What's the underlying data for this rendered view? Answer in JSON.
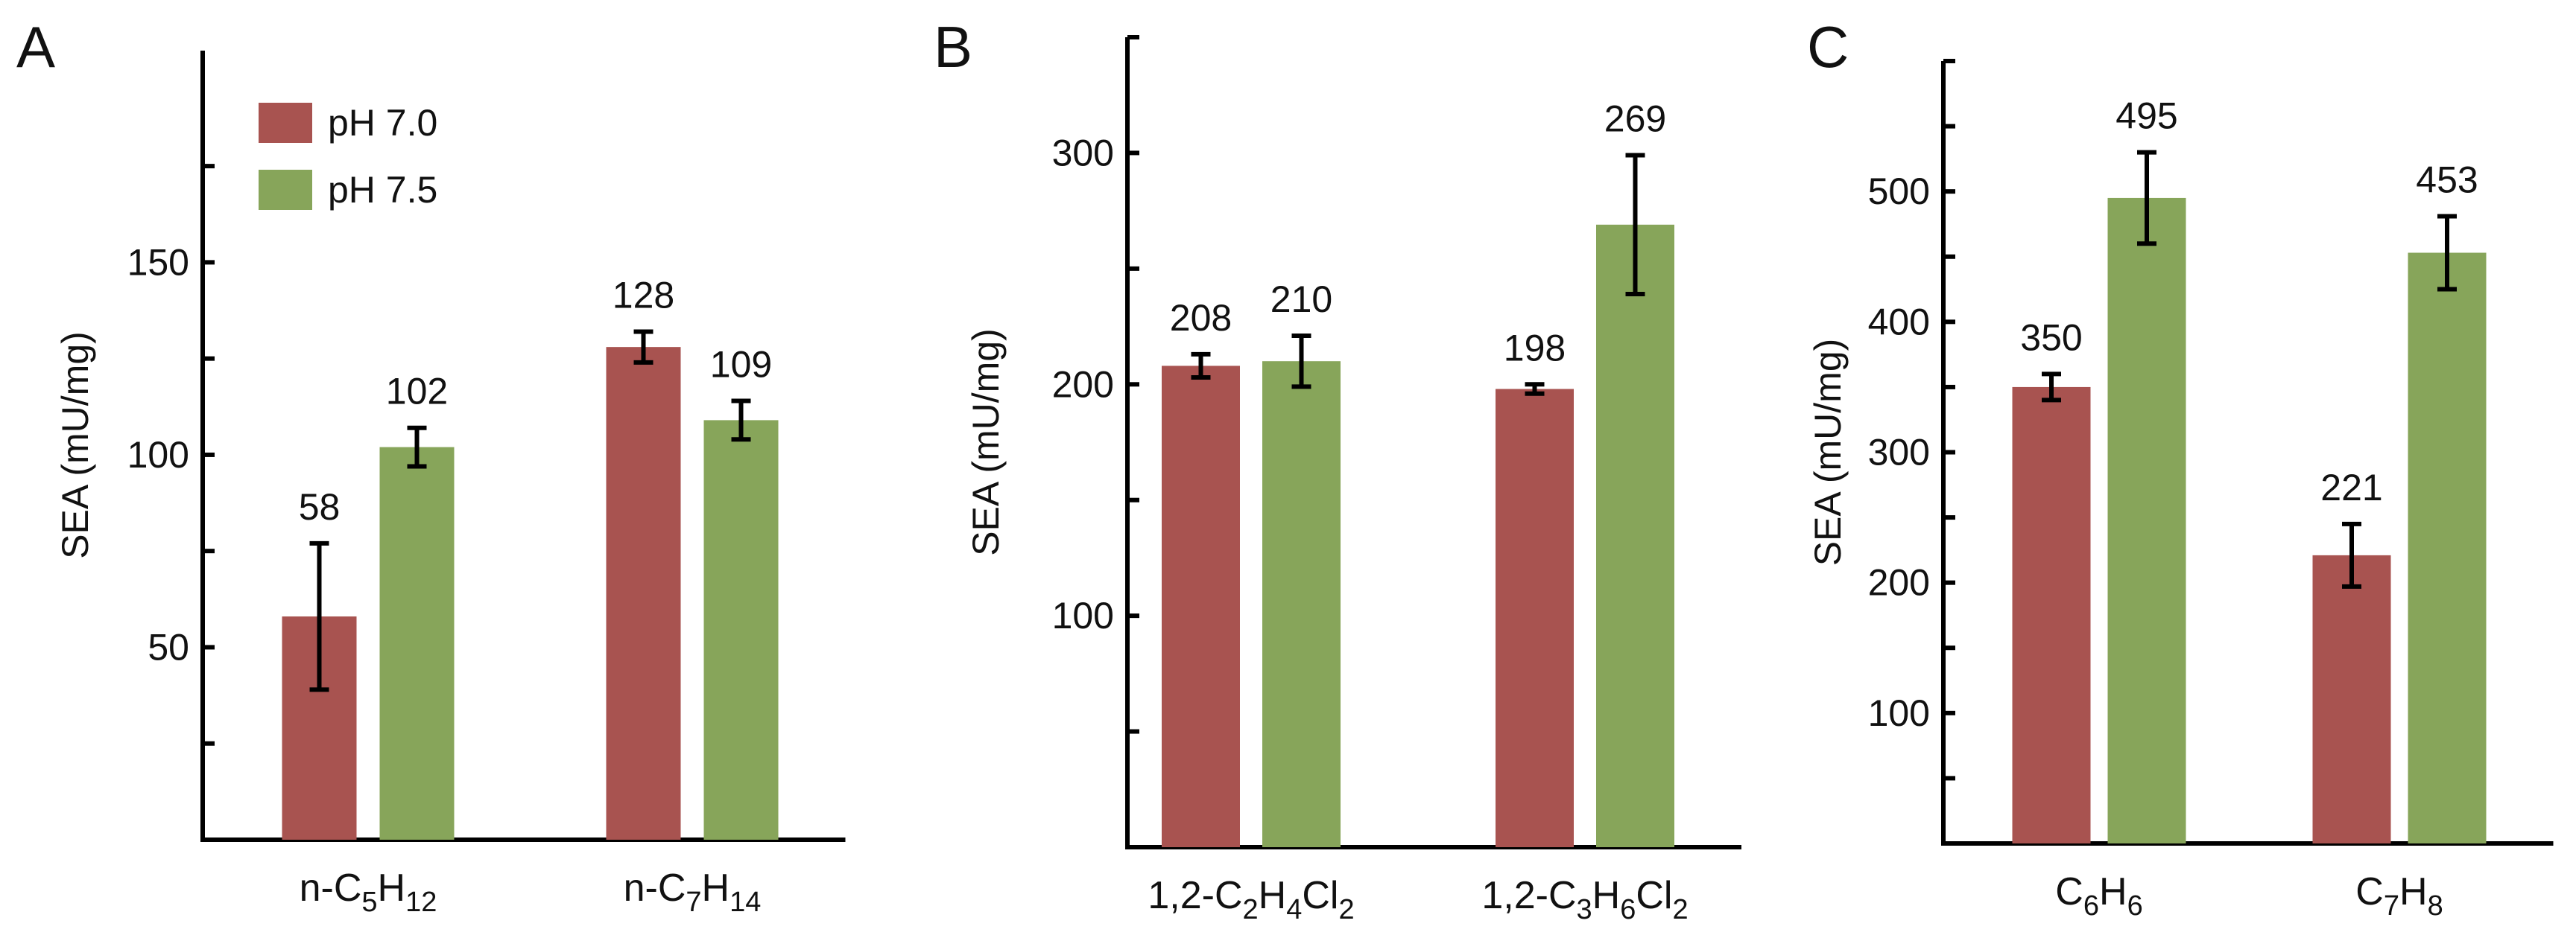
{
  "colors": {
    "ph70": "#a85350",
    "ph75": "#87a55a",
    "axis": "#000000"
  },
  "legend": {
    "items": [
      {
        "label": "pH 7.0",
        "color_key": "ph70"
      },
      {
        "label": "pH 7.5",
        "color_key": "ph75"
      }
    ],
    "placement": "top-left of panel A"
  },
  "chart_data": [
    {
      "panel": "A",
      "type": "bar",
      "ylabel": "SEA  (mU/mg)",
      "ylim": [
        0,
        205
      ],
      "yticks_labeled": [
        50,
        100,
        150
      ],
      "yticks_minor": [
        25,
        75,
        125,
        175
      ],
      "categories": [
        {
          "parts": [
            {
              "t": "n-C"
            },
            {
              "t": "5",
              "sub": true
            },
            {
              "t": "H"
            },
            {
              "t": "12",
              "sub": true
            }
          ]
        },
        {
          "parts": [
            {
              "t": "n-C"
            },
            {
              "t": "7",
              "sub": true
            },
            {
              "t": "H"
            },
            {
              "t": "14",
              "sub": true
            }
          ]
        }
      ],
      "series": [
        {
          "name": "pH 7.0",
          "values": [
            58,
            128
          ],
          "errors": [
            19,
            4
          ],
          "labels": [
            "58",
            "128"
          ]
        },
        {
          "name": "pH 7.5",
          "values": [
            102,
            109
          ],
          "errors": [
            5,
            5
          ],
          "labels": [
            "102",
            "109"
          ]
        }
      ]
    },
    {
      "panel": "B",
      "type": "bar",
      "ylabel": "SEA  (mU/mg)",
      "ylim": [
        0,
        350
      ],
      "yticks_labeled": [
        100,
        200,
        300
      ],
      "yticks_minor": [
        50,
        150,
        250,
        350
      ],
      "categories": [
        {
          "parts": [
            {
              "t": "1,2-C"
            },
            {
              "t": "2",
              "sub": true
            },
            {
              "t": "H"
            },
            {
              "t": "4",
              "sub": true
            },
            {
              "t": "Cl"
            },
            {
              "t": "2",
              "sub": true
            }
          ]
        },
        {
          "parts": [
            {
              "t": "1,2-C"
            },
            {
              "t": "3",
              "sub": true
            },
            {
              "t": "H"
            },
            {
              "t": "6",
              "sub": true
            },
            {
              "t": "Cl"
            },
            {
              "t": "2",
              "sub": true
            }
          ]
        }
      ],
      "series": [
        {
          "name": "pH 7.0",
          "values": [
            208,
            198
          ],
          "errors": [
            5,
            2
          ],
          "labels": [
            "208",
            "198"
          ]
        },
        {
          "name": "pH 7.5",
          "values": [
            210,
            269
          ],
          "errors": [
            11,
            30
          ],
          "labels": [
            "210",
            "269"
          ]
        }
      ]
    },
    {
      "panel": "C",
      "type": "bar",
      "ylabel": "SEA  (mU/mg)",
      "ylim": [
        0,
        600
      ],
      "yticks_labeled": [
        100,
        200,
        300,
        400,
        500
      ],
      "yticks_minor": [
        50,
        150,
        250,
        350,
        450,
        550,
        600
      ],
      "categories": [
        {
          "parts": [
            {
              "t": "C"
            },
            {
              "t": "6",
              "sub": true
            },
            {
              "t": "H"
            },
            {
              "t": "6",
              "sub": true
            }
          ]
        },
        {
          "parts": [
            {
              "t": "C"
            },
            {
              "t": "7",
              "sub": true
            },
            {
              "t": "H"
            },
            {
              "t": "8",
              "sub": true
            }
          ]
        }
      ],
      "series": [
        {
          "name": "pH 7.0",
          "values": [
            350,
            221
          ],
          "errors": [
            10,
            24
          ],
          "labels": [
            "350",
            "221"
          ]
        },
        {
          "name": "pH 7.5",
          "values": [
            495,
            453
          ],
          "errors": [
            35,
            28
          ],
          "labels": [
            "495",
            "453"
          ]
        }
      ]
    }
  ]
}
